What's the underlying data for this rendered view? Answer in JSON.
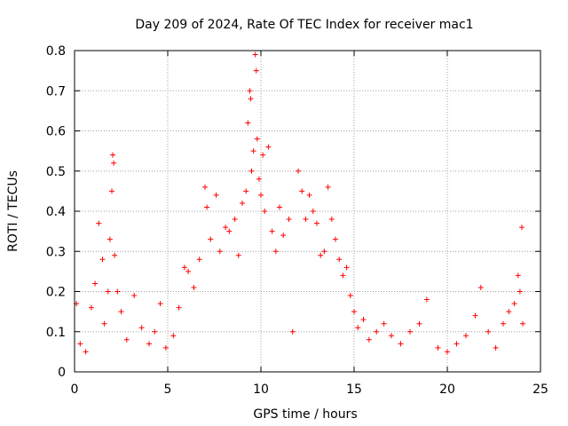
{
  "chart_data": {
    "type": "scatter",
    "title": "Day 209 of 2024, Rate Of TEC Index for receiver mac1",
    "xlabel": "GPS time / hours",
    "ylabel": "ROTI / TECUs",
    "xlim": [
      0,
      25
    ],
    "ylim": [
      0,
      0.8
    ],
    "xticks": [
      "0",
      "5",
      "10",
      "15",
      "20",
      "25"
    ],
    "yticks": [
      "0",
      "0.1",
      "0.2",
      "0.3",
      "0.4",
      "0.5",
      "0.6",
      "0.7",
      "0.8"
    ],
    "grid": true,
    "marker": "+",
    "color": "#ff0000",
    "x": [
      0.1,
      0.3,
      0.6,
      0.9,
      1.1,
      1.3,
      1.5,
      1.6,
      1.8,
      1.9,
      2.0,
      2.05,
      2.1,
      2.15,
      2.3,
      2.5,
      2.8,
      3.2,
      3.6,
      4.0,
      4.3,
      4.6,
      4.9,
      5.3,
      5.6,
      5.9,
      6.1,
      6.4,
      6.7,
      7.0,
      7.1,
      7.3,
      7.6,
      7.8,
      8.1,
      8.3,
      8.6,
      8.8,
      9.0,
      9.2,
      9.3,
      9.4,
      9.45,
      9.5,
      9.6,
      9.7,
      9.75,
      9.8,
      9.9,
      10.0,
      10.1,
      10.2,
      10.4,
      10.6,
      10.8,
      11.0,
      11.2,
      11.5,
      11.7,
      12.0,
      12.2,
      12.4,
      12.6,
      12.8,
      13.0,
      13.2,
      13.4,
      13.6,
      13.8,
      14.0,
      14.2,
      14.4,
      14.6,
      14.8,
      15.0,
      15.2,
      15.5,
      15.8,
      16.2,
      16.6,
      17.0,
      17.5,
      18.0,
      18.5,
      18.9,
      19.5,
      20.0,
      20.5,
      21.0,
      21.5,
      21.8,
      22.2,
      22.6,
      23.0,
      23.3,
      23.6,
      23.8,
      23.9,
      24.0,
      24.05
    ],
    "y": [
      0.17,
      0.07,
      0.05,
      0.16,
      0.22,
      0.37,
      0.28,
      0.12,
      0.2,
      0.33,
      0.45,
      0.54,
      0.52,
      0.29,
      0.2,
      0.15,
      0.08,
      0.19,
      0.11,
      0.07,
      0.1,
      0.17,
      0.06,
      0.09,
      0.16,
      0.26,
      0.25,
      0.21,
      0.28,
      0.46,
      0.41,
      0.33,
      0.44,
      0.3,
      0.36,
      0.35,
      0.38,
      0.29,
      0.42,
      0.45,
      0.62,
      0.7,
      0.68,
      0.5,
      0.55,
      0.79,
      0.75,
      0.58,
      0.48,
      0.44,
      0.54,
      0.4,
      0.56,
      0.35,
      0.3,
      0.41,
      0.34,
      0.38,
      0.1,
      0.5,
      0.45,
      0.38,
      0.44,
      0.4,
      0.37,
      0.29,
      0.3,
      0.46,
      0.38,
      0.33,
      0.28,
      0.24,
      0.26,
      0.19,
      0.15,
      0.11,
      0.13,
      0.08,
      0.1,
      0.12,
      0.09,
      0.07,
      0.1,
      0.12,
      0.18,
      0.06,
      0.05,
      0.07,
      0.09,
      0.14,
      0.21,
      0.1,
      0.06,
      0.12,
      0.15,
      0.17,
      0.24,
      0.2,
      0.36,
      0.12
    ]
  }
}
